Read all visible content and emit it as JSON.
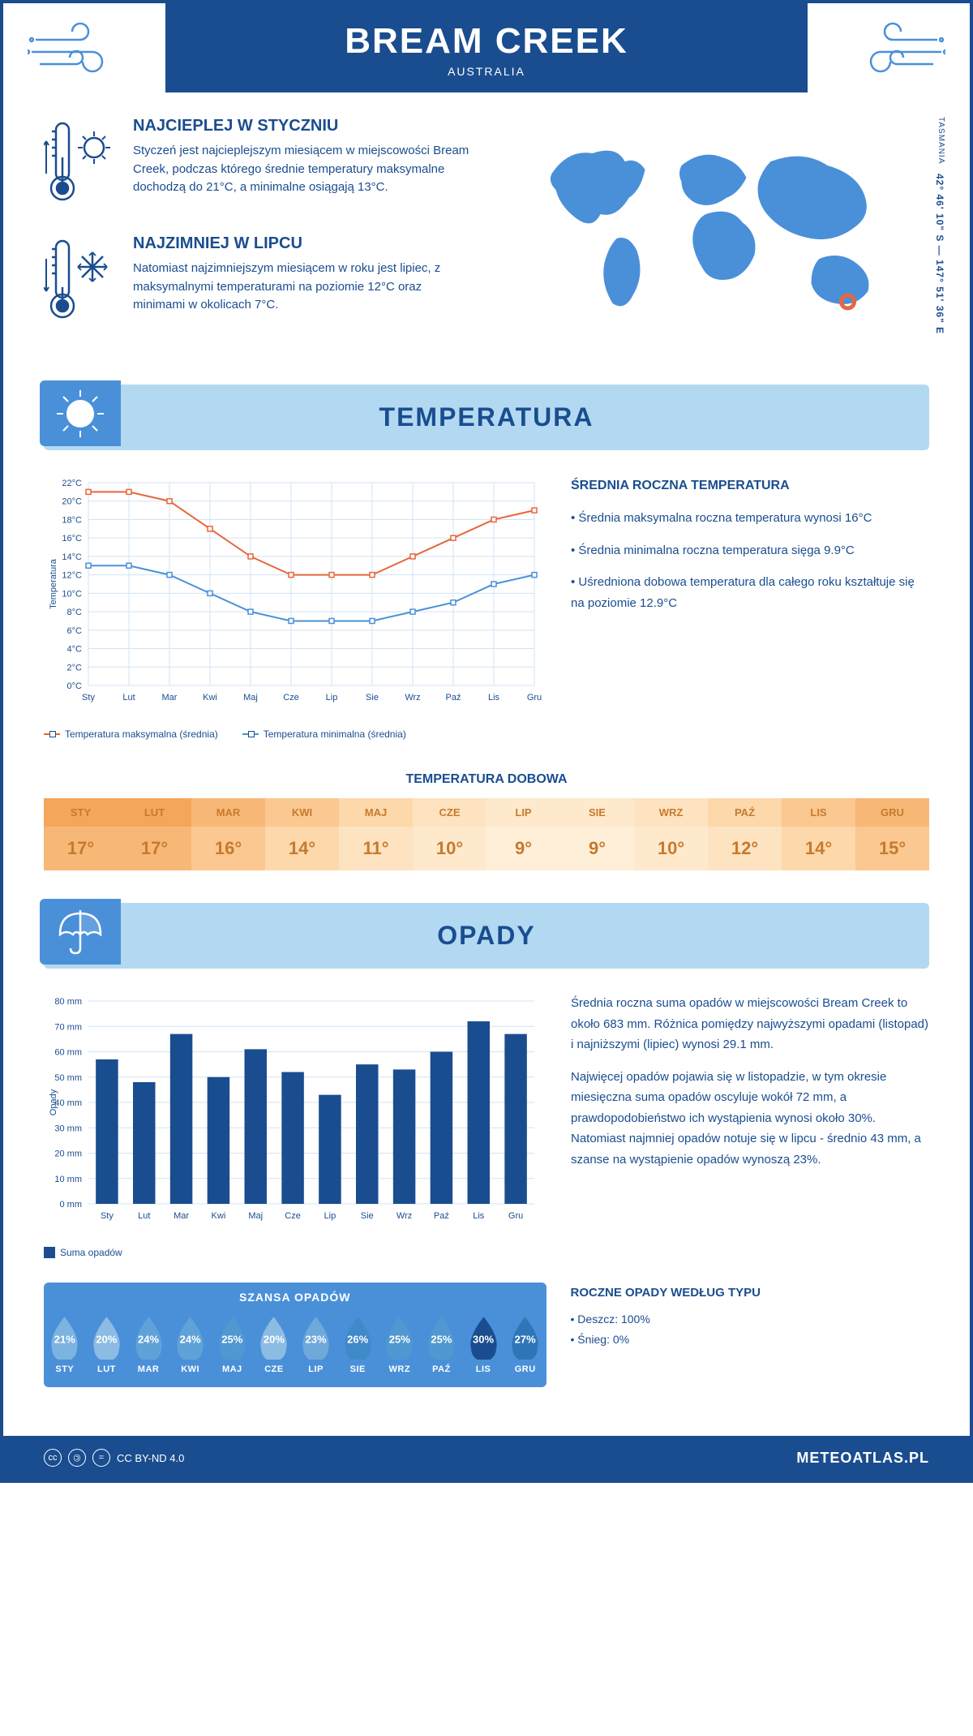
{
  "header": {
    "title": "BREAM CREEK",
    "subtitle": "AUSTRALIA"
  },
  "coords": "42° 46' 10\" S — 147° 51' 36\" E",
  "region": "TASMANIA",
  "intro": {
    "warm": {
      "heading": "NAJCIEPLEJ W STYCZNIU",
      "body": "Styczeń jest najcieplejszym miesiącem w miejscowości Bream Creek, podczas którego średnie temperatury maksymalne dochodzą do 21°C, a minimalne osiągają 13°C."
    },
    "cold": {
      "heading": "NAJZIMNIEJ W LIPCU",
      "body": "Natomiast najzimniejszym miesiącem w roku jest lipiec, z maksymalnymi temperaturami na poziomie 12°C oraz minimami w okolicach 7°C."
    }
  },
  "sections": {
    "temperature": {
      "title": "TEMPERATURA"
    },
    "precip": {
      "title": "OPADY"
    }
  },
  "temp_chart": {
    "type": "line",
    "months": [
      "Sty",
      "Lut",
      "Mar",
      "Kwi",
      "Maj",
      "Cze",
      "Lip",
      "Sie",
      "Wrz",
      "Paź",
      "Lis",
      "Gru"
    ],
    "ylabel": "Temperatura",
    "ylim": [
      0,
      22
    ],
    "ytick_step": 2,
    "series": [
      {
        "name": "Temperatura maksymalna (średnia)",
        "color": "#e8663c",
        "values": [
          21,
          21,
          20,
          17,
          14,
          12,
          12,
          12,
          14,
          16,
          18,
          19
        ]
      },
      {
        "name": "Temperatura minimalna (średnia)",
        "color": "#4a90d9",
        "values": [
          13,
          13,
          12,
          10,
          8,
          7,
          7,
          7,
          8,
          9,
          11,
          12
        ]
      }
    ],
    "grid_color": "#d0e3f5",
    "background_color": "#ffffff"
  },
  "temp_summary": {
    "heading": "ŚREDNIA ROCZNA TEMPERATURA",
    "points": [
      "Średnia maksymalna roczna temperatura wynosi 16°C",
      "Średnia minimalna roczna temperatura sięga 9.9°C",
      "Uśredniona dobowa temperatura dla całego roku kształtuje się na poziomie 12.9°C"
    ]
  },
  "daily_temp": {
    "title": "TEMPERATURA DOBOWA",
    "months": [
      "STY",
      "LUT",
      "MAR",
      "KWI",
      "MAJ",
      "CZE",
      "LIP",
      "SIE",
      "WRZ",
      "PAŹ",
      "LIS",
      "GRU"
    ],
    "values": [
      "17°",
      "17°",
      "16°",
      "14°",
      "11°",
      "10°",
      "9°",
      "9°",
      "10°",
      "12°",
      "14°",
      "15°"
    ],
    "head_colors": [
      "#f5a65b",
      "#f5a65b",
      "#f7b877",
      "#fac890",
      "#fcd8ab",
      "#fde3c0",
      "#fee9cc",
      "#fee9cc",
      "#fde3c0",
      "#fcd8ab",
      "#fac890",
      "#f7b877"
    ],
    "val_colors": [
      "#f7b877",
      "#f7b877",
      "#fac890",
      "#fcd8ab",
      "#fde3c0",
      "#fee9cc",
      "#feefd9",
      "#feefd9",
      "#fee9cc",
      "#fde3c0",
      "#fcd8ab",
      "#fac890"
    ]
  },
  "precip_chart": {
    "type": "bar",
    "months": [
      "Sty",
      "Lut",
      "Mar",
      "Kwi",
      "Maj",
      "Cze",
      "Lip",
      "Sie",
      "Wrz",
      "Paź",
      "Lis",
      "Gru"
    ],
    "ylabel": "Opady",
    "ylim": [
      0,
      80
    ],
    "ytick_step": 10,
    "bar_color": "#1a4d8f",
    "values": [
      57,
      48,
      67,
      50,
      61,
      52,
      43,
      55,
      53,
      60,
      72,
      67
    ],
    "legend": "Suma opadów",
    "grid_color": "#d0e3f5"
  },
  "precip_text": {
    "p1": "Średnia roczna suma opadów w miejscowości Bream Creek to około 683 mm. Różnica pomiędzy najwyższymi opadami (listopad) i najniższymi (lipiec) wynosi 29.1 mm.",
    "p2": "Najwięcej opadów pojawia się w listopadzie, w tym okresie miesięczna suma opadów oscyluje wokół 72 mm, a prawdopodobieństwo ich wystąpienia wynosi około 30%. Natomiast najmniej opadów notuje się w lipcu - średnio 43 mm, a szanse na wystąpienie opadów wynoszą 23%."
  },
  "rain_chance": {
    "title": "SZANSA OPADÓW",
    "months": [
      "STY",
      "LUT",
      "MAR",
      "KWI",
      "MAJ",
      "CZE",
      "LIP",
      "SIE",
      "WRZ",
      "PAŹ",
      "LIS",
      "GRU"
    ],
    "values": [
      "21%",
      "20%",
      "24%",
      "24%",
      "25%",
      "20%",
      "23%",
      "26%",
      "25%",
      "25%",
      "30%",
      "27%"
    ],
    "shades": [
      "#7db3e0",
      "#8cbce4",
      "#5fa2d8",
      "#5fa2d8",
      "#4f98d2",
      "#8cbce4",
      "#6fa9da",
      "#3f89c8",
      "#4f98d2",
      "#4f98d2",
      "#1a4d8f",
      "#2f76b8"
    ]
  },
  "precip_type": {
    "heading": "ROCZNE OPADY WEDŁUG TYPU",
    "lines": [
      "Deszcz: 100%",
      "Śnieg: 0%"
    ]
  },
  "footer": {
    "license": "CC BY-ND 4.0",
    "brand": "METEOATLAS.PL"
  }
}
